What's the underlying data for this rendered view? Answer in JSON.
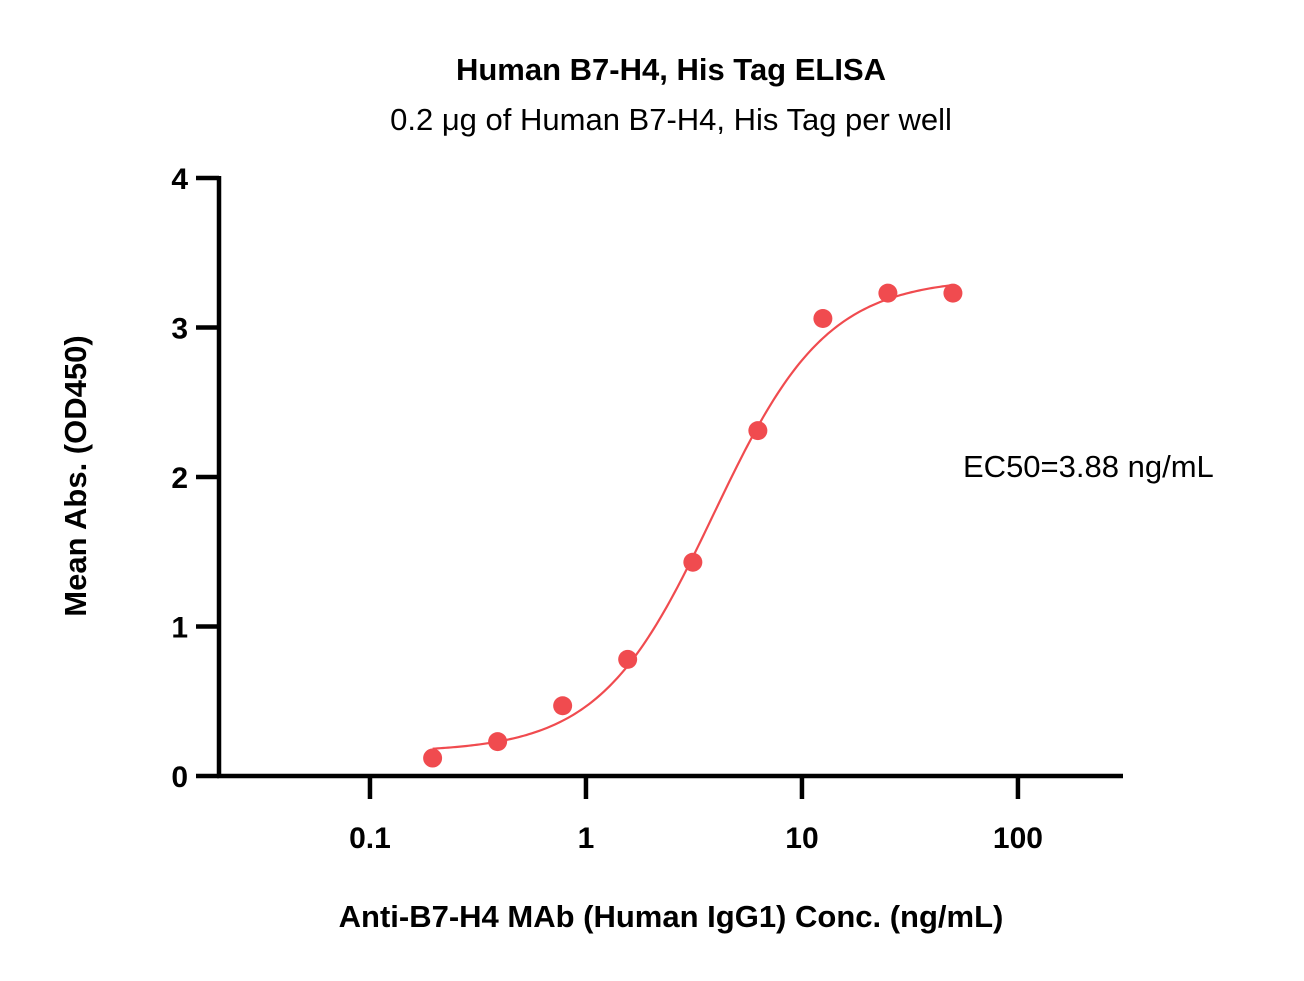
{
  "chart_data": {
    "type": "scatter",
    "title": "Human B7-H4, His Tag ELISA",
    "subtitle": "0.2 μg of Human B7-H4, His Tag per well",
    "xlabel": "Anti-B7-H4 MAb (Human IgG1) Conc. (ng/mL)",
    "ylabel": "Mean Abs. (OD450)",
    "x_scale": "log",
    "xlim": [
      0.02,
      300
    ],
    "ylim": [
      0,
      4
    ],
    "x_ticks": [
      0.1,
      1,
      10,
      100
    ],
    "x_tick_labels": [
      "0.1",
      "1",
      "10",
      "100"
    ],
    "y_ticks": [
      0,
      1,
      2,
      3,
      4
    ],
    "y_tick_labels": [
      "0",
      "1",
      "2",
      "3",
      "4"
    ],
    "grid": false,
    "series": [
      {
        "x": [
          0.195,
          0.39,
          0.78,
          1.56,
          3.125,
          6.25,
          12.5,
          25,
          50
        ],
        "y": [
          0.12,
          0.23,
          0.47,
          0.78,
          1.43,
          2.31,
          3.06,
          3.23,
          3.23
        ],
        "color": "#f04b4f",
        "fit": {
          "model": "4PL",
          "bottom": 0.16,
          "top": 3.33,
          "ec50": 3.88,
          "hill": 1.65,
          "x_range": [
            0.195,
            50
          ]
        }
      }
    ],
    "annotations": [
      {
        "text": "EC50=3.88 ng/mL"
      }
    ]
  }
}
